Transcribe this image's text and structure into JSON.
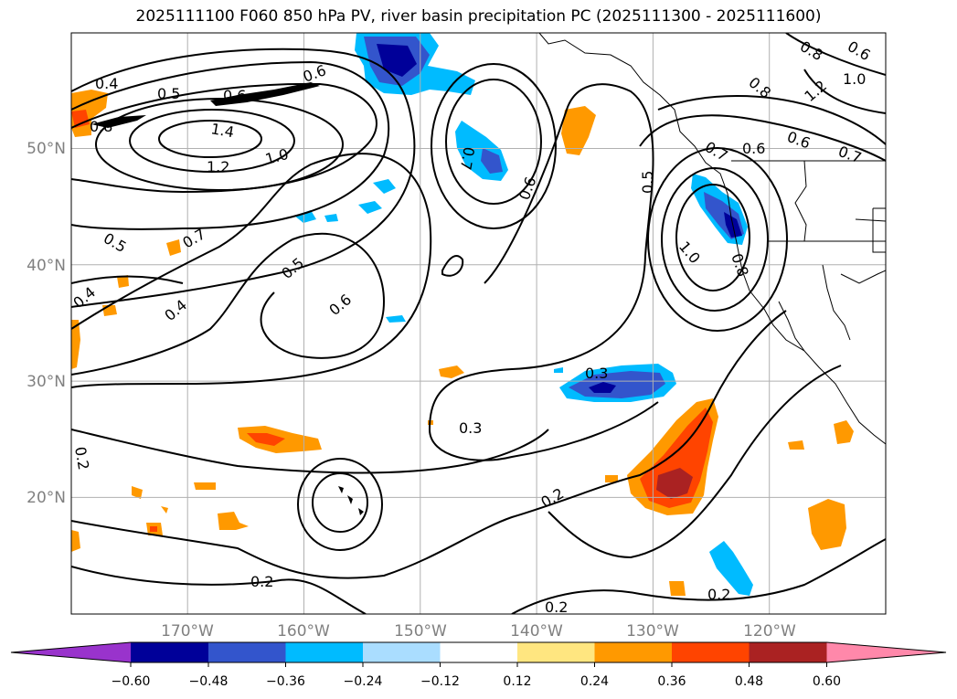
{
  "title": "2025111100 F060 850 hPa PV, river basin precipitation PC (2025111300 - 2025111600)",
  "lat_labels": [
    "50°N",
    "40°N",
    "30°N",
    "20°N"
  ],
  "lon_labels": [
    "170°W",
    "160°W",
    "150°W",
    "140°W",
    "130°W",
    "120°W"
  ],
  "contour_labels": [
    "0.4",
    "0.5",
    "0.6",
    "0.6",
    "0.8",
    "1.4",
    "1.2",
    "1.0",
    "0.5",
    "0.7",
    "0.4",
    "0.4",
    "0.5",
    "0.6",
    "0.7",
    "0.6",
    "0.5",
    "1.0",
    "0.8",
    "0.6",
    "0.7",
    "0.8",
    "1.2",
    "1.0",
    "0.8",
    "0.6",
    "0.6",
    "0.7",
    "0.3",
    "0.3",
    "0.2",
    "0.2",
    "0.2",
    "0.2",
    "0.2"
  ],
  "colorbar": {
    "colors": [
      "#9933cc",
      "#000099",
      "#3355cc",
      "#00bbff",
      "#aaddff",
      "#ffffff",
      "#ffe680",
      "#ff9900",
      "#ff4400",
      "#aa2222",
      "#ff88aa"
    ],
    "tick_labels": [
      "−0.60",
      "−0.48",
      "−0.36",
      "−0.24",
      "−0.12",
      "0.12",
      "0.24",
      "0.36",
      "0.48",
      "0.60"
    ]
  }
}
